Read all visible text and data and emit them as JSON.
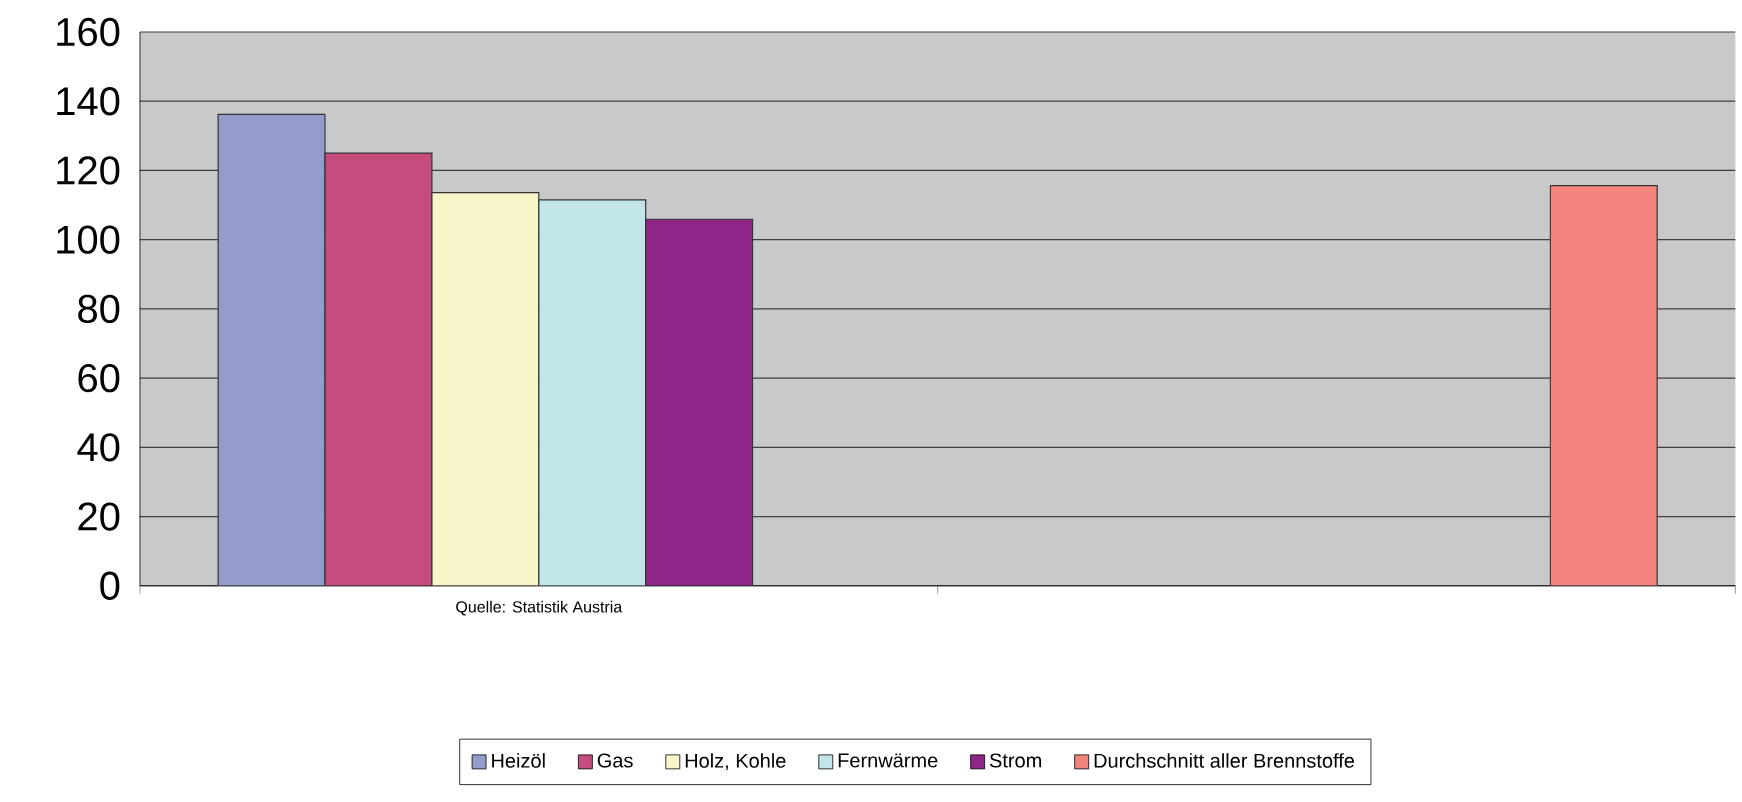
{
  "chart_data": {
    "type": "bar",
    "categories": [
      "Quelle: Statistik Austria",
      null
    ],
    "series": [
      {
        "name": "Heizöl",
        "color": "#949ccc",
        "values": [
          136.2,
          null
        ]
      },
      {
        "name": "Gas",
        "color": "#c64c80",
        "values": [
          125.0,
          null
        ]
      },
      {
        "name": "Holz, Kohle",
        "color": "#f8f5c8",
        "values": [
          113.6,
          null
        ]
      },
      {
        "name": "Fernwärme",
        "color": "#c2e5e9",
        "values": [
          111.5,
          null
        ]
      },
      {
        "name": "Strom",
        "color": "#8f2587",
        "values": [
          105.9,
          null
        ]
      },
      {
        "name": "Durchschnitt aller Brennstoffe",
        "color": "#f4857c",
        "values": [
          null,
          115.6
        ]
      }
    ],
    "ylim": [
      0,
      160
    ],
    "yticks": [
      0,
      20,
      40,
      60,
      80,
      100,
      120,
      140,
      160
    ],
    "grid": "y",
    "legend": "bottom"
  }
}
